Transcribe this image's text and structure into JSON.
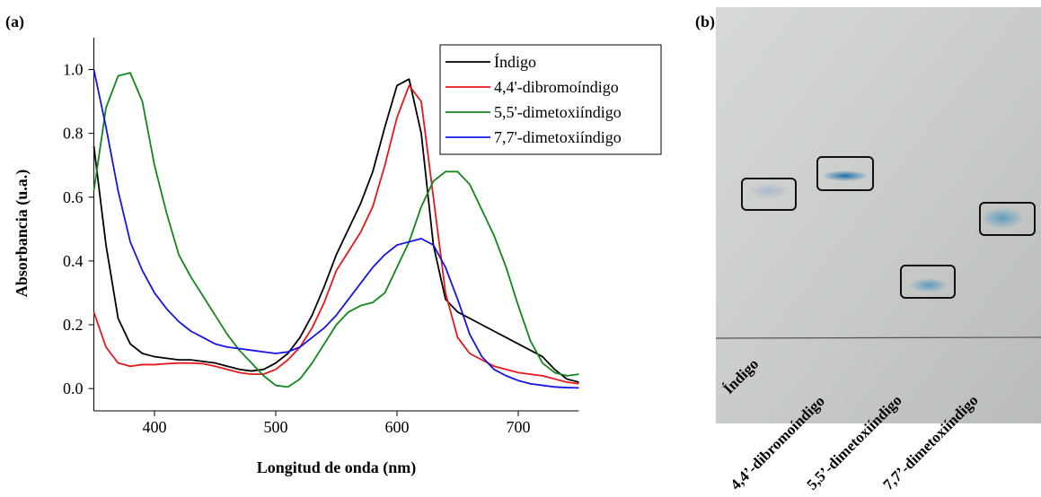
{
  "chart_data": {
    "type": "line",
    "panel_label": "(a)",
    "x_label": "Longitud de onda (nm)",
    "y_label": "Absorbancia (u.a.)",
    "x": [
      350,
      360,
      370,
      380,
      390,
      400,
      410,
      420,
      430,
      440,
      450,
      460,
      470,
      480,
      490,
      500,
      510,
      520,
      530,
      540,
      550,
      560,
      570,
      580,
      590,
      600,
      610,
      620,
      630,
      640,
      650,
      660,
      670,
      680,
      690,
      700,
      710,
      720,
      730,
      740,
      750
    ],
    "series": [
      {
        "name": "Índigo",
        "color": "#000000",
        "values": [
          0.76,
          0.45,
          0.22,
          0.14,
          0.11,
          0.1,
          0.095,
          0.09,
          0.09,
          0.085,
          0.08,
          0.07,
          0.06,
          0.055,
          0.06,
          0.08,
          0.11,
          0.16,
          0.23,
          0.32,
          0.42,
          0.5,
          0.58,
          0.68,
          0.82,
          0.95,
          0.97,
          0.8,
          0.45,
          0.28,
          0.24,
          0.22,
          0.2,
          0.18,
          0.16,
          0.14,
          0.12,
          0.1,
          0.06,
          0.03,
          0.02
        ]
      },
      {
        "name": "4,4'-dibromoíndigo",
        "color": "#e8171b",
        "values": [
          0.24,
          0.13,
          0.08,
          0.07,
          0.075,
          0.075,
          0.078,
          0.08,
          0.08,
          0.078,
          0.07,
          0.06,
          0.05,
          0.045,
          0.045,
          0.06,
          0.09,
          0.13,
          0.19,
          0.27,
          0.37,
          0.43,
          0.49,
          0.57,
          0.7,
          0.85,
          0.95,
          0.9,
          0.6,
          0.3,
          0.16,
          0.11,
          0.09,
          0.07,
          0.06,
          0.05,
          0.045,
          0.04,
          0.03,
          0.02,
          0.015
        ]
      },
      {
        "name": "5,5'-dimetoxiíndigo",
        "color": "#12861b",
        "values": [
          0.62,
          0.88,
          0.98,
          0.99,
          0.9,
          0.7,
          0.55,
          0.42,
          0.35,
          0.29,
          0.23,
          0.17,
          0.12,
          0.08,
          0.04,
          0.01,
          0.005,
          0.03,
          0.08,
          0.14,
          0.2,
          0.24,
          0.26,
          0.27,
          0.3,
          0.38,
          0.46,
          0.57,
          0.65,
          0.68,
          0.68,
          0.64,
          0.56,
          0.48,
          0.38,
          0.26,
          0.15,
          0.08,
          0.05,
          0.04,
          0.045
        ]
      },
      {
        "name": "7,7'-dimetoxiíndigo",
        "color": "#1414e6",
        "values": [
          1.0,
          0.82,
          0.62,
          0.46,
          0.37,
          0.3,
          0.25,
          0.21,
          0.18,
          0.16,
          0.14,
          0.13,
          0.125,
          0.12,
          0.115,
          0.11,
          0.115,
          0.13,
          0.16,
          0.19,
          0.23,
          0.28,
          0.33,
          0.38,
          0.42,
          0.45,
          0.46,
          0.47,
          0.45,
          0.38,
          0.28,
          0.17,
          0.1,
          0.06,
          0.04,
          0.025,
          0.015,
          0.01,
          0.005,
          0.003,
          0.002
        ]
      }
    ],
    "xlim": [
      350,
      750
    ],
    "xticks": [
      400,
      500,
      600,
      700
    ],
    "ylim": [
      -0.07,
      1.1
    ],
    "yticks": [
      {
        "value": 0,
        "label": "0.0"
      },
      0.2,
      0.4,
      0.6,
      0.8,
      {
        "value": 1,
        "label": "1.0"
      }
    ],
    "grid": false,
    "legend": "upper right"
  },
  "tlc": {
    "panel_label": "(b)",
    "lanes": [
      {
        "label": "Índigo"
      },
      {
        "prefix": "4,4’-",
        "label": "dibromoíndigo"
      },
      {
        "prefix": "5,5’-",
        "label": "dimetoxiíndigo"
      },
      {
        "prefix": "7,7’-",
        "label": "dimetoxiíndigo"
      }
    ]
  }
}
